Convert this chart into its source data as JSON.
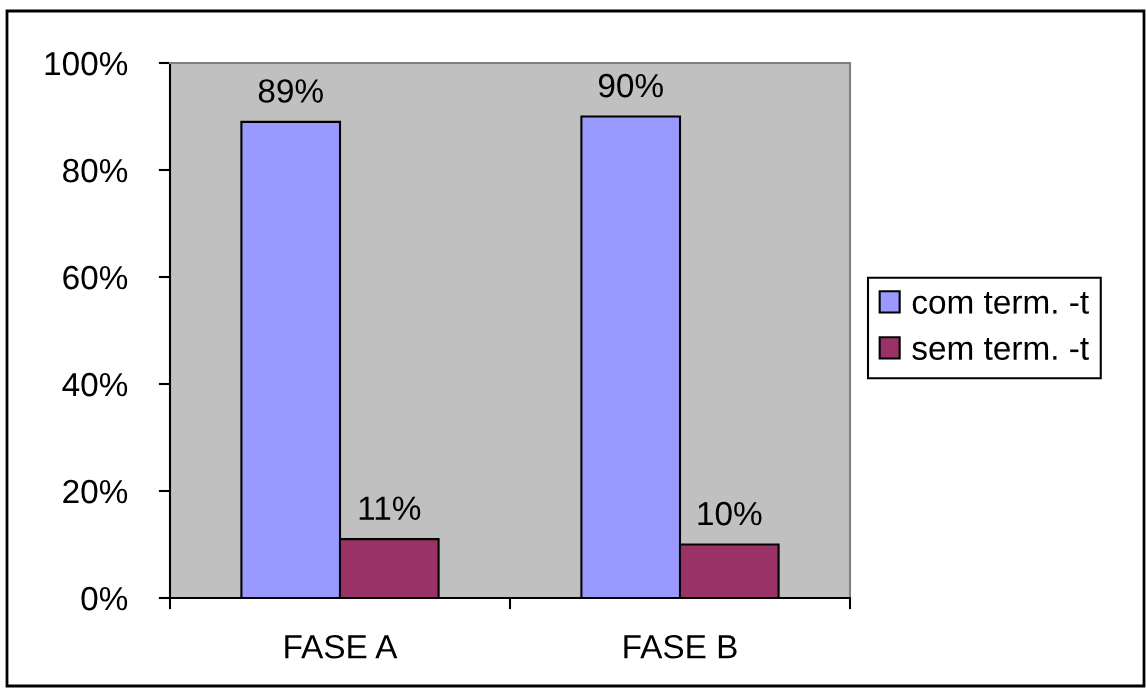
{
  "chart_data": {
    "type": "bar",
    "categories": [
      "FASE A",
      "FASE B"
    ],
    "series": [
      {
        "name": "com term. -t",
        "color": "#9999ff",
        "values": [
          89,
          90
        ],
        "value_labels": [
          "89%",
          "90%"
        ]
      },
      {
        "name": "sem term. -t",
        "color": "#993366",
        "values": [
          11,
          10
        ],
        "value_labels": [
          "11%",
          "10%"
        ]
      }
    ],
    "ylim": [
      0,
      100
    ],
    "yticks": [
      {
        "value": 0,
        "label": "0%"
      },
      {
        "value": 20,
        "label": "20%"
      },
      {
        "value": 40,
        "label": "40%"
      },
      {
        "value": 60,
        "label": "60%"
      },
      {
        "value": 80,
        "label": "80%"
      },
      {
        "value": 100,
        "label": "100%"
      }
    ],
    "grid": false,
    "legend": "right"
  }
}
